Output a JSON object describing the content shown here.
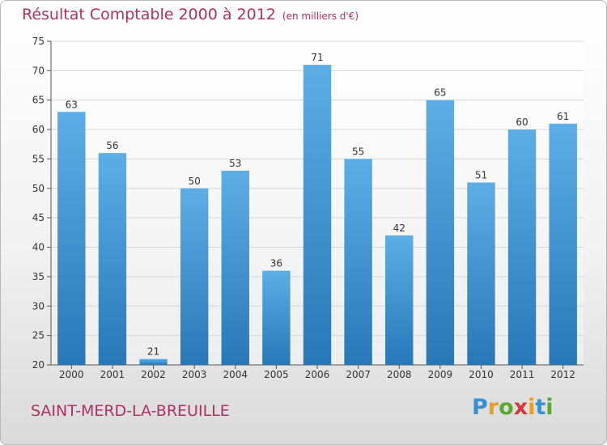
{
  "header": {
    "title": "Résultat Comptable 2000 à 2012",
    "subtitle": "(en milliers d'€)"
  },
  "footer": {
    "place": "SAINT-MERD-LA-BREUILLE",
    "logo": "Proxiti"
  },
  "colors": {
    "bar_light": "#5dade6",
    "bar_dark": "#2878b8",
    "title": "#b03060"
  },
  "chart_data": {
    "type": "bar",
    "title": "Résultat Comptable 2000 à 2012",
    "subtitle": "(en milliers d'€)",
    "categories": [
      "2000",
      "2001",
      "2002",
      "2003",
      "2004",
      "2005",
      "2006",
      "2007",
      "2008",
      "2009",
      "2010",
      "2011",
      "2012"
    ],
    "values": [
      63,
      56,
      21,
      50,
      53,
      36,
      71,
      55,
      42,
      65,
      51,
      60,
      61
    ],
    "ylim": [
      20,
      75
    ],
    "yticks": [
      20,
      25,
      30,
      35,
      40,
      45,
      50,
      55,
      60,
      65,
      70,
      75
    ],
    "grid": true,
    "xlabel": "",
    "ylabel": ""
  }
}
